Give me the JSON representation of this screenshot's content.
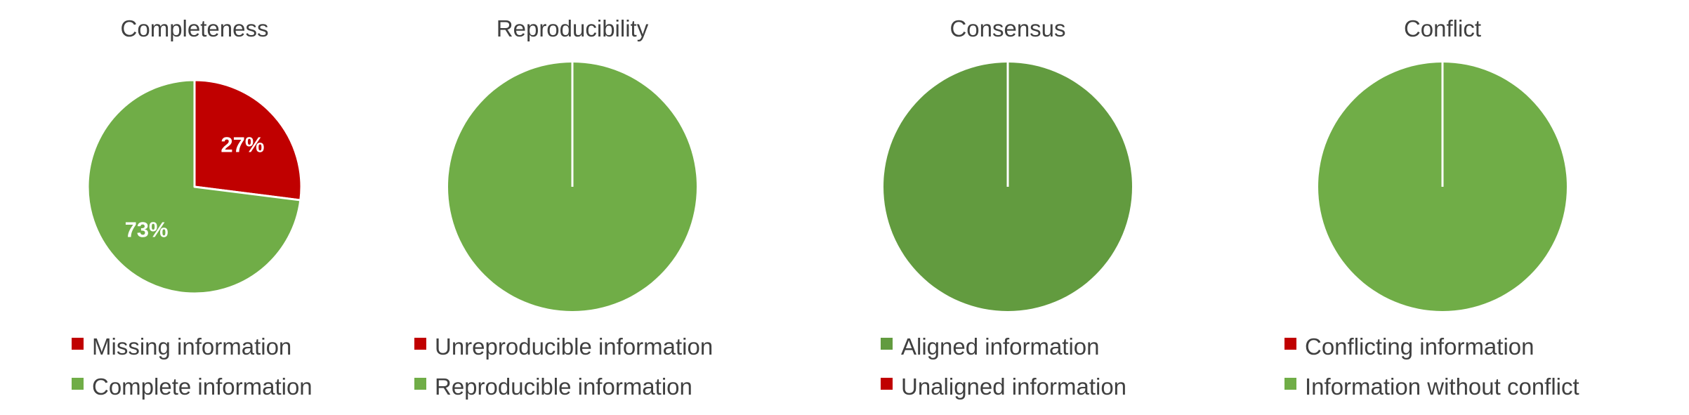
{
  "chart_data": [
    {
      "type": "pie",
      "title": "Completeness",
      "slices": [
        {
          "name": "Missing information",
          "value": 27,
          "color": "#c00000",
          "label": "27%"
        },
        {
          "name": "Complete information",
          "value": 73,
          "color": "#70ad47",
          "label": "73%"
        }
      ],
      "legend": [
        {
          "name": "Missing information",
          "color": "#c00000"
        },
        {
          "name": "Complete information",
          "color": "#70ad47"
        }
      ]
    },
    {
      "type": "pie",
      "title": "Reproducibility",
      "slices": [
        {
          "name": "Unreproducible information",
          "value": 0,
          "color": "#c00000"
        },
        {
          "name": "Reproducible information",
          "value": 100,
          "color": "#70ad47"
        }
      ],
      "legend": [
        {
          "name": "Unreproducible information",
          "color": "#c00000"
        },
        {
          "name": "Reproducible information",
          "color": "#70ad47"
        }
      ]
    },
    {
      "type": "pie",
      "title": "Consensus",
      "slices": [
        {
          "name": "Aligned information",
          "value": 100,
          "color": "#629b3f"
        },
        {
          "name": "Unaligned information",
          "value": 0,
          "color": "#c00000"
        }
      ],
      "legend": [
        {
          "name": "Aligned information",
          "color": "#629b3f"
        },
        {
          "name": "Unaligned information",
          "color": "#c00000"
        }
      ]
    },
    {
      "type": "pie",
      "title": "Conflict",
      "slices": [
        {
          "name": "Conflicting information",
          "value": 0,
          "color": "#c00000"
        },
        {
          "name": "Information without conflict",
          "value": 100,
          "color": "#70ad47"
        }
      ],
      "legend": [
        {
          "name": "Conflicting information",
          "color": "#c00000"
        },
        {
          "name": "Information without conflict",
          "color": "#70ad47"
        }
      ]
    }
  ]
}
